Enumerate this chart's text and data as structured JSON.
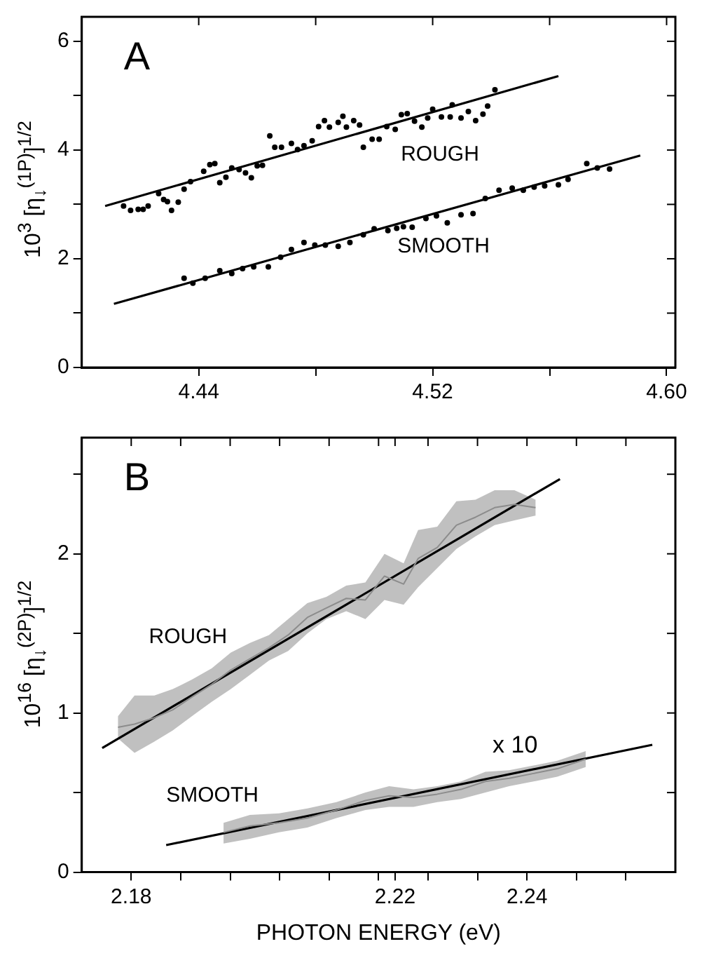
{
  "chart_data": [
    {
      "type": "scatter",
      "title": "A",
      "ylabel": "10$^{3}$ [η$_{↓}$$^{(1P)}$]$^{1/2}$",
      "grid": false,
      "legend": false,
      "xlim": [
        4.4,
        4.603
      ],
      "xticks": [
        4.44,
        {
          "value": 4.48,
          "label": null
        },
        4.52,
        {
          "value": 4.56,
          "label": null
        },
        {
          "value": 4.6,
          "label": "4.60"
        }
      ],
      "ylim": [
        0,
        6.45
      ],
      "yticks": [
        0,
        {
          "value": 1,
          "label": null
        },
        2,
        {
          "value": 3,
          "label": null
        },
        4,
        {
          "value": 5,
          "label": null
        },
        6
      ],
      "series": [
        {
          "name": "ROUGH",
          "marker": "circle",
          "color": "#000000",
          "x": [
            4.4143,
            4.4167,
            4.4193,
            4.421,
            4.4227,
            4.4263,
            4.428,
            4.4293,
            4.4307,
            4.433,
            4.435,
            4.4372,
            4.4417,
            4.4438,
            4.4455,
            4.4472,
            4.4493,
            4.4513,
            4.4538,
            4.456,
            4.458,
            4.46,
            4.4618,
            4.4643,
            4.466,
            4.4683,
            4.4717,
            4.4738,
            4.476,
            4.4788,
            4.481,
            4.483,
            4.4847,
            4.4877,
            4.4893,
            4.4905,
            4.493,
            4.495,
            4.4963,
            4.4993,
            4.5017,
            4.5043,
            4.5072,
            4.5093,
            4.5113,
            4.5138,
            4.5163,
            4.5183,
            4.52,
            4.523,
            4.526,
            4.5267,
            4.5297,
            4.5322,
            4.5347,
            4.5372,
            4.5388,
            4.5413
          ],
          "values": [
            2.97,
            2.89,
            2.91,
            2.91,
            2.97,
            3.2,
            3.09,
            3.05,
            2.89,
            3.04,
            3.28,
            3.42,
            3.61,
            3.73,
            3.75,
            3.4,
            3.5,
            3.67,
            3.64,
            3.58,
            3.49,
            3.71,
            3.72,
            4.26,
            4.05,
            4.05,
            4.12,
            4.01,
            4.08,
            4.17,
            4.43,
            4.54,
            4.42,
            4.51,
            4.62,
            4.42,
            4.54,
            4.46,
            4.05,
            4.2,
            4.2,
            4.43,
            4.38,
            4.65,
            4.67,
            4.53,
            4.42,
            4.59,
            4.75,
            4.61,
            4.61,
            4.83,
            4.59,
            4.71,
            4.54,
            4.66,
            4.81,
            5.11
          ]
        },
        {
          "type": "line",
          "marker": "none",
          "color": "#000000",
          "x": [
            4.408,
            4.563
          ],
          "values": [
            2.97,
            5.36
          ]
        },
        {
          "name": "SMOOTH",
          "marker": "circle",
          "color": "#000000",
          "x": [
            4.435,
            4.438,
            4.4422,
            4.4472,
            4.4513,
            4.455,
            4.4588,
            4.4638,
            4.468,
            4.4717,
            4.476,
            4.4797,
            4.4833,
            4.4877,
            4.4917,
            4.4963,
            4.5,
            4.5047,
            4.5077,
            4.51,
            4.513,
            4.5177,
            4.5213,
            4.525,
            4.5297,
            4.5338,
            4.538,
            4.5427,
            4.5472,
            4.551,
            4.5547,
            4.5583,
            4.563,
            4.5663,
            4.5727,
            4.5763,
            4.5805
          ],
          "values": [
            1.64,
            1.55,
            1.64,
            1.78,
            1.73,
            1.82,
            1.85,
            1.85,
            2.03,
            2.17,
            2.3,
            2.25,
            2.25,
            2.23,
            2.3,
            2.44,
            2.55,
            2.52,
            2.56,
            2.59,
            2.58,
            2.74,
            2.79,
            2.66,
            2.81,
            2.83,
            3.11,
            3.26,
            3.3,
            3.26,
            3.32,
            3.34,
            3.36,
            3.46,
            3.75,
            3.67,
            3.65
          ]
        },
        {
          "type": "line",
          "marker": "none",
          "color": "#000000",
          "x": [
            4.411,
            4.591
          ],
          "values": [
            1.17,
            3.9
          ]
        }
      ]
    },
    {
      "type": "line",
      "title": "B",
      "xlabel": "PHOTON ENERGY (eV)",
      "ylabel": "10$^{16}$ [η$_{↓}$$^{(2P)}$]$^{1/2}$",
      "grid": false,
      "legend": false,
      "xlim": [
        2.1725,
        2.2625
      ],
      "xticks": [
        2.18,
        {
          "value": 2.1875,
          "label": null
        },
        {
          "value": 2.195,
          "label": null
        },
        {
          "value": 2.2025,
          "label": null
        },
        {
          "value": 2.21,
          "label": null
        },
        {
          "value": 2.2175,
          "label": null
        },
        2.22,
        {
          "value": 2.225,
          "label": null
        },
        {
          "value": 2.2325,
          "label": null
        },
        2.24,
        {
          "value": 2.2475,
          "label": null
        },
        {
          "value": 2.255,
          "label": null
        }
      ],
      "ylim": [
        0,
        2.73
      ],
      "yticks": [
        0,
        {
          "value": 0.5,
          "label": null
        },
        1,
        {
          "value": 1.5,
          "label": null
        },
        2,
        {
          "value": 2.5,
          "label": null
        }
      ],
      "annotations": [
        "x 10"
      ],
      "series": [
        {
          "name": "ROUGH",
          "color": "#8c8c8c",
          "x": [
            2.178,
            2.1805,
            2.1835,
            2.1863,
            2.1892,
            2.1922,
            2.1951,
            2.198,
            2.2009,
            2.2038,
            2.2067,
            2.2096,
            2.2126,
            2.2155,
            2.2184,
            2.2213,
            2.2235,
            2.2264,
            2.2293,
            2.2322,
            2.2351,
            2.2381,
            2.2413
          ],
          "values": [
            0.91,
            0.93,
            0.97,
            1.02,
            1.1,
            1.18,
            1.27,
            1.34,
            1.41,
            1.49,
            1.6,
            1.66,
            1.72,
            1.71,
            1.86,
            1.81,
            1.97,
            2.04,
            2.18,
            2.23,
            2.29,
            2.31,
            2.29
          ],
          "lower": [
            0.84,
            0.75,
            0.82,
            0.89,
            0.98,
            1.07,
            1.15,
            1.24,
            1.33,
            1.39,
            1.5,
            1.59,
            1.64,
            1.59,
            1.71,
            1.68,
            1.79,
            1.91,
            2.03,
            2.11,
            2.18,
            2.21,
            2.24
          ],
          "upper": [
            0.98,
            1.11,
            1.11,
            1.15,
            1.21,
            1.28,
            1.38,
            1.44,
            1.49,
            1.59,
            1.69,
            1.73,
            1.8,
            1.82,
            2.0,
            1.94,
            2.15,
            2.17,
            2.33,
            2.34,
            2.4,
            2.4,
            2.34
          ]
        },
        {
          "color": "#000000",
          "x": [
            2.1756,
            2.245
          ],
          "values": [
            0.78,
            2.47
          ]
        },
        {
          "name": "SMOOTH",
          "color": "#8c8c8c",
          "x": [
            2.194,
            2.198,
            2.2024,
            2.2067,
            2.2111,
            2.2155,
            2.2191,
            2.2228,
            2.2264,
            2.23,
            2.2337,
            2.2373,
            2.241,
            2.2446,
            2.2489
          ],
          "values": [
            0.25,
            0.29,
            0.31,
            0.34,
            0.39,
            0.45,
            0.48,
            0.47,
            0.49,
            0.52,
            0.57,
            0.59,
            0.62,
            0.65,
            0.71
          ],
          "lower": [
            0.18,
            0.21,
            0.25,
            0.28,
            0.34,
            0.39,
            0.41,
            0.41,
            0.44,
            0.46,
            0.5,
            0.54,
            0.57,
            0.6,
            0.66
          ],
          "upper": [
            0.31,
            0.36,
            0.37,
            0.4,
            0.44,
            0.5,
            0.54,
            0.52,
            0.54,
            0.57,
            0.63,
            0.64,
            0.67,
            0.7,
            0.76
          ]
        },
        {
          "color": "#000000",
          "x": [
            2.1853,
            2.259
          ],
          "values": [
            0.17,
            0.8
          ]
        }
      ]
    }
  ]
}
